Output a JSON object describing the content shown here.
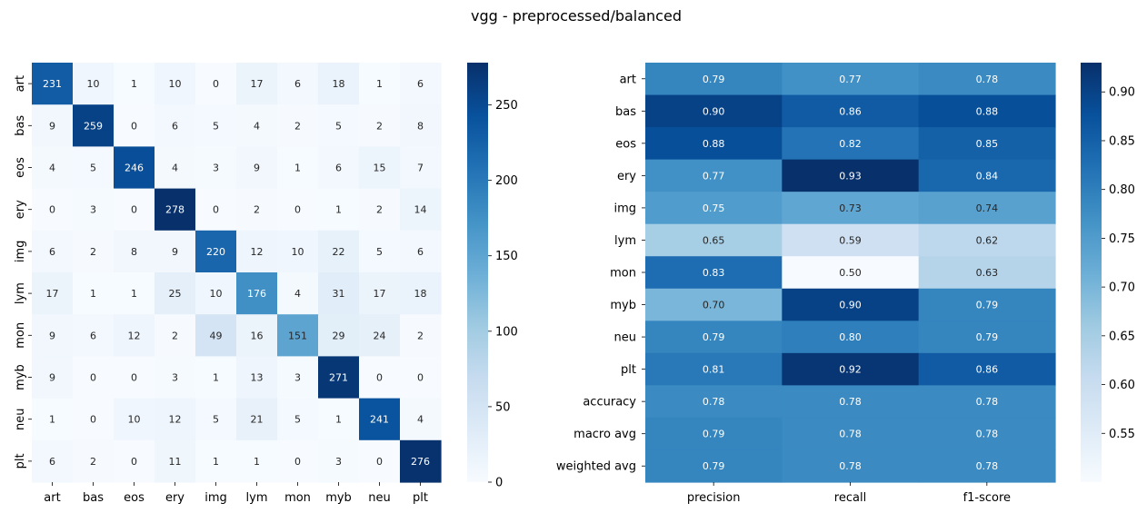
{
  "title": "vgg - preprocessed/balanced",
  "chart_data": [
    {
      "type": "heatmap",
      "name": "confusion-matrix",
      "rows": [
        "art",
        "bas",
        "eos",
        "ery",
        "img",
        "lym",
        "mon",
        "myb",
        "neu",
        "plt"
      ],
      "cols": [
        "art",
        "bas",
        "eos",
        "ery",
        "img",
        "lym",
        "mon",
        "myb",
        "neu",
        "plt"
      ],
      "values": [
        [
          231,
          10,
          1,
          10,
          0,
          17,
          6,
          18,
          1,
          6
        ],
        [
          9,
          259,
          0,
          6,
          5,
          4,
          2,
          5,
          2,
          8
        ],
        [
          4,
          5,
          246,
          4,
          3,
          9,
          1,
          6,
          15,
          7
        ],
        [
          0,
          3,
          0,
          278,
          0,
          2,
          0,
          1,
          2,
          14
        ],
        [
          6,
          2,
          8,
          9,
          220,
          12,
          10,
          22,
          5,
          6
        ],
        [
          17,
          1,
          1,
          25,
          10,
          176,
          4,
          31,
          17,
          18
        ],
        [
          9,
          6,
          12,
          2,
          49,
          16,
          151,
          29,
          24,
          2
        ],
        [
          9,
          0,
          0,
          3,
          1,
          13,
          3,
          271,
          0,
          0
        ],
        [
          1,
          0,
          10,
          12,
          5,
          21,
          5,
          1,
          241,
          4
        ],
        [
          6,
          2,
          0,
          11,
          1,
          1,
          0,
          3,
          0,
          276
        ]
      ],
      "labels": [
        [
          "231",
          "10",
          "1",
          "10",
          "0",
          "17",
          "6",
          "18",
          "1",
          "6"
        ],
        [
          "9",
          "259",
          "0",
          "6",
          "5",
          "4",
          "2",
          "5",
          "2",
          "8"
        ],
        [
          "4",
          "5",
          "246",
          "4",
          "3",
          "9",
          "1",
          "6",
          "15",
          "7"
        ],
        [
          "0",
          "3",
          "0",
          "278",
          "0",
          "2",
          "0",
          "1",
          "2",
          "14"
        ],
        [
          "6",
          "2",
          "8",
          "9",
          "220",
          "12",
          "10",
          "22",
          "5",
          "6"
        ],
        [
          "17",
          "1",
          "1",
          "25",
          "10",
          "176",
          "4",
          "31",
          "17",
          "18"
        ],
        [
          "9",
          "6",
          "12",
          "2",
          "49",
          "16",
          "151",
          "29",
          "24",
          "2"
        ],
        [
          "9",
          "0",
          "0",
          "3",
          "1",
          "13",
          "3",
          "271",
          "0",
          "0"
        ],
        [
          "1",
          "0",
          "10",
          "12",
          "5",
          "21",
          "5",
          "1",
          "241",
          "4"
        ],
        [
          "6",
          "2",
          "0",
          "11",
          "1",
          "1",
          "0",
          "3",
          "0",
          "276"
        ]
      ],
      "vmin": 0,
      "vmax": 278,
      "colormap": "Blues",
      "colorbar_ticks": [
        0,
        50,
        100,
        150,
        200,
        250
      ],
      "colorbar_tick_labels": [
        "0",
        "50",
        "100",
        "150",
        "200",
        "250"
      ],
      "ytick_rotation": "vertical"
    },
    {
      "type": "heatmap",
      "name": "classification-report",
      "rows": [
        "art",
        "bas",
        "eos",
        "ery",
        "img",
        "lym",
        "mon",
        "myb",
        "neu",
        "plt",
        "accuracy",
        "macro avg",
        "weighted avg"
      ],
      "cols": [
        "precision",
        "recall",
        "f1-score"
      ],
      "values": [
        [
          0.79,
          0.77,
          0.78
        ],
        [
          0.9,
          0.86,
          0.88
        ],
        [
          0.88,
          0.82,
          0.85
        ],
        [
          0.77,
          0.93,
          0.84
        ],
        [
          0.75,
          0.73,
          0.74
        ],
        [
          0.65,
          0.59,
          0.62
        ],
        [
          0.83,
          0.5,
          0.63
        ],
        [
          0.7,
          0.9,
          0.79
        ],
        [
          0.79,
          0.8,
          0.79
        ],
        [
          0.81,
          0.92,
          0.86
        ],
        [
          0.78,
          0.78,
          0.78
        ],
        [
          0.79,
          0.78,
          0.78
        ],
        [
          0.79,
          0.78,
          0.78
        ]
      ],
      "labels": [
        [
          "0.79",
          "0.77",
          "0.78"
        ],
        [
          "0.90",
          "0.86",
          "0.88"
        ],
        [
          "0.88",
          "0.82",
          "0.85"
        ],
        [
          "0.77",
          "0.93",
          "0.84"
        ],
        [
          "0.75",
          "0.73",
          "0.74"
        ],
        [
          "0.65",
          "0.59",
          "0.62"
        ],
        [
          "0.83",
          "0.50",
          "0.63"
        ],
        [
          "0.70",
          "0.90",
          "0.79"
        ],
        [
          "0.79",
          "0.80",
          "0.79"
        ],
        [
          "0.81",
          "0.92",
          "0.86"
        ],
        [
          "0.78",
          "0.78",
          "0.78"
        ],
        [
          "0.79",
          "0.78",
          "0.78"
        ],
        [
          "0.79",
          "0.78",
          "0.78"
        ]
      ],
      "vmin": 0.5,
      "vmax": 0.93,
      "colormap": "Blues",
      "colorbar_ticks": [
        0.55,
        0.6,
        0.65,
        0.7,
        0.75,
        0.8,
        0.85,
        0.9
      ],
      "colorbar_tick_labels": [
        "0.55",
        "0.60",
        "0.65",
        "0.70",
        "0.75",
        "0.80",
        "0.85",
        "0.90"
      ],
      "ytick_rotation": "horizontal"
    }
  ]
}
